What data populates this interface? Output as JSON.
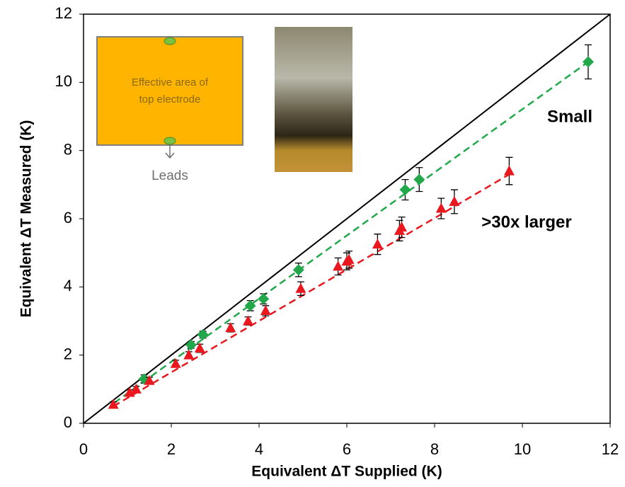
{
  "chart_data": {
    "type": "scatter",
    "xlabel": "Equivalent ΔT Supplied (K)",
    "ylabel": "Equivalent ΔT Measured (K)",
    "xlim": [
      0,
      12
    ],
    "ylim": [
      0,
      12
    ],
    "xticks": [
      0,
      2,
      4,
      6,
      8,
      10,
      12
    ],
    "yticks": [
      0,
      2,
      4,
      6,
      8,
      10,
      12
    ],
    "grid": false,
    "reference_line": {
      "color": "#000000",
      "x": [
        0,
        12
      ],
      "values": [
        0,
        12
      ]
    },
    "series": [
      {
        "color": "#22a84a",
        "marker": "diamond",
        "x": [
          1.38,
          2.45,
          2.72,
          3.8,
          4.1,
          4.9,
          7.33,
          7.65,
          11.5
        ],
        "values": [
          1.3,
          2.3,
          2.6,
          3.45,
          3.65,
          4.5,
          6.85,
          7.15,
          10.6
        ],
        "errors": [
          0.12,
          0.1,
          0.1,
          0.15,
          0.15,
          0.2,
          0.3,
          0.35,
          0.5
        ],
        "fit": {
          "x": [
            0.7,
            11.5
          ],
          "values": [
            0.6,
            10.6
          ]
        }
      },
      {
        "color": "#e8181e",
        "marker": "triangle",
        "x": [
          0.68,
          1.05,
          1.2,
          1.5,
          2.1,
          2.4,
          2.65,
          3.35,
          3.75,
          4.15,
          4.95,
          5.8,
          6.0,
          6.05,
          6.7,
          7.2,
          7.25,
          8.15,
          8.45,
          9.7
        ],
        "values": [
          0.55,
          0.9,
          1.0,
          1.25,
          1.75,
          2.0,
          2.2,
          2.8,
          3.0,
          3.3,
          3.95,
          4.6,
          4.75,
          4.8,
          5.25,
          5.65,
          5.75,
          6.3,
          6.5,
          7.4
        ],
        "errors": [
          0.08,
          0.08,
          0.08,
          0.1,
          0.1,
          0.1,
          0.12,
          0.12,
          0.12,
          0.15,
          0.2,
          0.25,
          0.25,
          0.25,
          0.3,
          0.3,
          0.3,
          0.3,
          0.35,
          0.4
        ],
        "fit": {
          "x": [
            0.68,
            9.7
          ],
          "values": [
            0.5,
            7.3
          ]
        }
      }
    ],
    "annotations": [
      "Small",
      ">30x larger"
    ],
    "inset": {
      "label_lines": [
        "Effective area of",
        "top electrode"
      ],
      "leads": "Leads"
    }
  }
}
